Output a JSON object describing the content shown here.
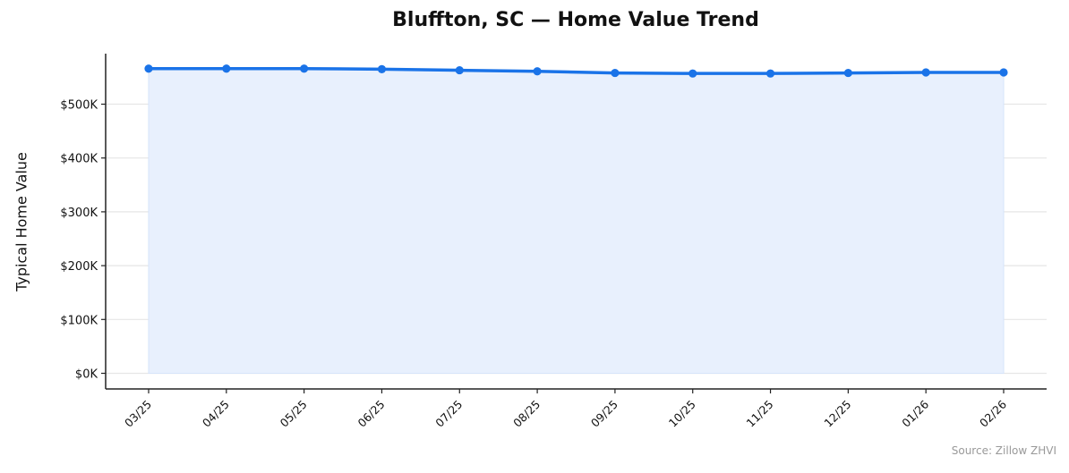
{
  "chart": {
    "title": "Bluffton, SC — Home Value Trend",
    "ylabel": "Typical Home Value",
    "source": "Source: Zillow ZHVI"
  },
  "colors": {
    "line": "#1a73e8",
    "fill": "#e8f0fd",
    "grid": "#e6e6e6",
    "axis": "#222222",
    "source_text": "#999999"
  },
  "chart_data": {
    "type": "line",
    "title": "Bluffton, SC — Home Value Trend",
    "xlabel": "",
    "ylabel": "Typical Home Value",
    "categories": [
      "03/25",
      "04/25",
      "05/25",
      "06/25",
      "07/25",
      "08/25",
      "09/25",
      "10/25",
      "11/25",
      "12/25",
      "01/26",
      "02/26"
    ],
    "series": [
      {
        "name": "Typical Home Value",
        "values": [
          566000,
          566000,
          566000,
          565000,
          563000,
          561000,
          558000,
          557000,
          557000,
          558000,
          559000,
          559000
        ]
      }
    ],
    "yticks": [
      0,
      100000,
      200000,
      300000,
      400000,
      500000
    ],
    "ytick_labels": [
      "$0K",
      "$100K",
      "$200K",
      "$300K",
      "$400K",
      "$500K"
    ],
    "ylim": [
      -28000,
      595000
    ],
    "grid": "horizontal",
    "area_fill": true,
    "legend": null,
    "annotation": "Source: Zillow ZHVI"
  }
}
